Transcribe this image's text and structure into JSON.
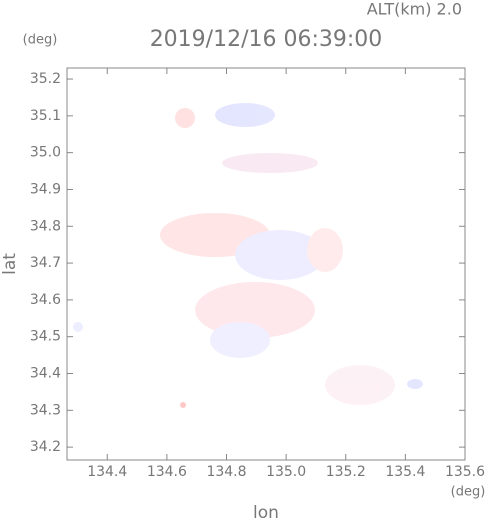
{
  "chart_data": {
    "type": "scatter",
    "title": "2019/12/16 06:39:00",
    "subtitle": "ALT(km) 2.0",
    "x_label": "lon",
    "y_label": "lat",
    "x_unit": "(deg)",
    "y_unit": "(deg)",
    "xlim": [
      134.265,
      135.6
    ],
    "ylim": [
      34.165,
      35.23
    ],
    "xticks": [
      {
        "value": 134.4,
        "label": "134.4"
      },
      {
        "value": 134.6,
        "label": "134.6"
      },
      {
        "value": 134.8,
        "label": "134.8"
      },
      {
        "value": 135.0,
        "label": "135.0"
      },
      {
        "value": 135.2,
        "label": "135.2"
      },
      {
        "value": 135.4,
        "label": "135.4"
      },
      {
        "value": 135.6,
        "label": "135.6"
      }
    ],
    "yticks": [
      34.2,
      34.3,
      34.4,
      34.5,
      34.6,
      34.7,
      34.8,
      34.9,
      {
        "value": 35.0,
        "label": "35.0"
      },
      35.1,
      35.2
    ]
  }
}
